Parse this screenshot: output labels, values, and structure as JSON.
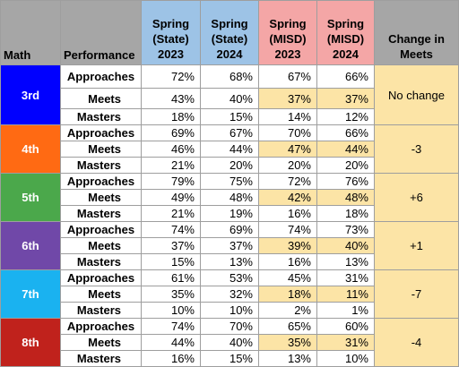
{
  "header": {
    "math": "Math",
    "performance": "Performance",
    "state_2023": [
      "Spring",
      "(State)",
      "2023"
    ],
    "state_2024": [
      "Spring",
      "(State)",
      "2024"
    ],
    "misd_2023": [
      "Spring",
      "(MISD)",
      "2023"
    ],
    "misd_2024": [
      "Spring",
      "(MISD)",
      "2024"
    ],
    "change": [
      "Change in",
      "Meets"
    ]
  },
  "colors": {
    "grade_3": "#0000ff",
    "grade_4": "#ff6a13",
    "grade_5": "#4ba84b",
    "grade_6": "#7048a8",
    "grade_7": "#1ab2f0",
    "grade_8": "#c0221c",
    "highlight": "#fce4a6"
  },
  "grades": [
    {
      "label": "3rd",
      "change": "No change",
      "rows": [
        {
          "level": "Approaches",
          "s23": "72%",
          "s24": "68%",
          "m23": "67%",
          "m24": "66%"
        },
        {
          "level": "Meets",
          "s23": "43%",
          "s24": "40%",
          "m23": "37%",
          "m24": "37%"
        },
        {
          "level": "Masters",
          "s23": "18%",
          "s24": "15%",
          "m23": "14%",
          "m24": "12%"
        }
      ]
    },
    {
      "label": "4th",
      "change": "-3",
      "rows": [
        {
          "level": "Approaches",
          "s23": "69%",
          "s24": "67%",
          "m23": "70%",
          "m24": "66%"
        },
        {
          "level": "Meets",
          "s23": "46%",
          "s24": "44%",
          "m23": "47%",
          "m24": "44%"
        },
        {
          "level": "Masters",
          "s23": "21%",
          "s24": "20%",
          "m23": "20%",
          "m24": "20%"
        }
      ]
    },
    {
      "label": "5th",
      "change": "+6",
      "rows": [
        {
          "level": "Approaches",
          "s23": "79%",
          "s24": "75%",
          "m23": "72%",
          "m24": "76%"
        },
        {
          "level": "Meets",
          "s23": "49%",
          "s24": "48%",
          "m23": "42%",
          "m24": "48%"
        },
        {
          "level": "Masters",
          "s23": "21%",
          "s24": "19%",
          "m23": "16%",
          "m24": "18%"
        }
      ]
    },
    {
      "label": "6th",
      "change": "+1",
      "rows": [
        {
          "level": "Approaches",
          "s23": "74%",
          "s24": "69%",
          "m23": "74%",
          "m24": "73%"
        },
        {
          "level": "Meets",
          "s23": "37%",
          "s24": "37%",
          "m23": "39%",
          "m24": "40%"
        },
        {
          "level": "Masters",
          "s23": "15%",
          "s24": "13%",
          "m23": "16%",
          "m24": "13%"
        }
      ]
    },
    {
      "label": "7th",
      "change": "-7",
      "rows": [
        {
          "level": "Approaches",
          "s23": "61%",
          "s24": "53%",
          "m23": "45%",
          "m24": "31%"
        },
        {
          "level": "Meets",
          "s23": "35%",
          "s24": "32%",
          "m23": "18%",
          "m24": "11%"
        },
        {
          "level": "Masters",
          "s23": "10%",
          "s24": "10%",
          "m23": "2%",
          "m24": "1%"
        }
      ]
    },
    {
      "label": "8th",
      "change": "-4",
      "rows": [
        {
          "level": "Approaches",
          "s23": "74%",
          "s24": "70%",
          "m23": "65%",
          "m24": "60%"
        },
        {
          "level": "Meets",
          "s23": "44%",
          "s24": "40%",
          "m23": "35%",
          "m24": "31%"
        },
        {
          "level": "Masters",
          "s23": "16%",
          "s24": "15%",
          "m23": "13%",
          "m24": "10%"
        }
      ]
    }
  ]
}
